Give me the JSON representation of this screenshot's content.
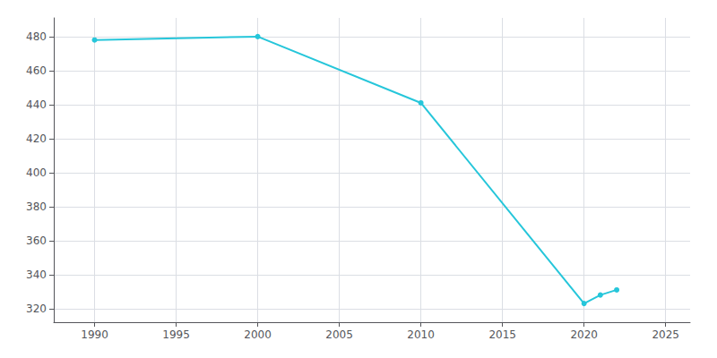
{
  "chart_data": {
    "type": "line",
    "x": [
      1990,
      2000,
      2010,
      2020,
      2021,
      2022
    ],
    "values": [
      478,
      480,
      441,
      323,
      328,
      331
    ],
    "color": "#26C6DA",
    "marker": "circle",
    "xlim": [
      1987.5,
      2026.5
    ],
    "ylim": [
      312,
      491
    ],
    "xticks": [
      1990,
      1995,
      2000,
      2005,
      2010,
      2015,
      2020,
      2025
    ],
    "yticks": [
      320,
      340,
      360,
      380,
      400,
      420,
      440,
      460,
      480
    ],
    "grid": true
  }
}
